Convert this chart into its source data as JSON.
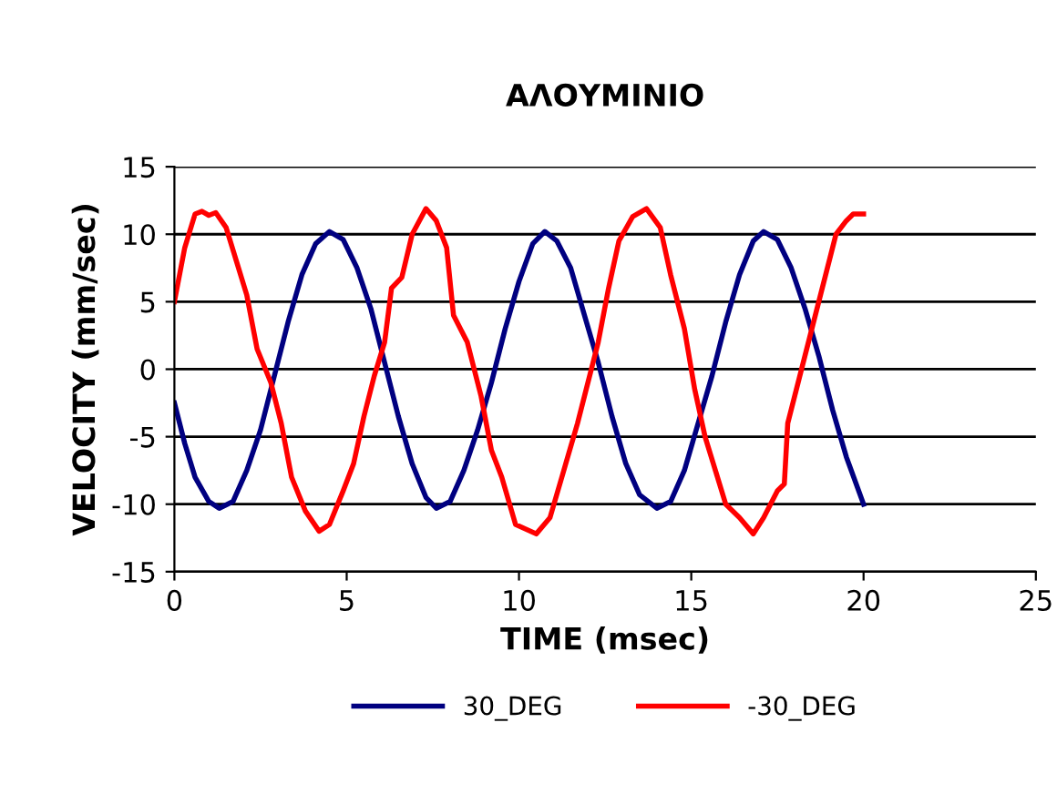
{
  "chart_data": {
    "type": "line",
    "title": "ΑΛΟΥΜΙΝΙΟ",
    "xlabel": "TIME (msec)",
    "ylabel": "VELOCITY (mm/sec)",
    "xlim": [
      0,
      25
    ],
    "xticks": [
      0,
      5,
      10,
      15,
      20,
      25
    ],
    "ylim": [
      -15,
      15
    ],
    "yticks": [
      -15,
      -10,
      -5,
      0,
      5,
      10,
      15
    ],
    "grid": "y",
    "legend": "bottom",
    "marker": "none",
    "line_style": "solid",
    "series": [
      {
        "name": "30_DEG",
        "color": "#000080",
        "x": [
          0,
          0.3,
          0.6,
          1.0,
          1.3,
          1.7,
          2.1,
          2.5,
          2.9,
          3.3,
          3.7,
          4.1,
          4.5,
          4.9,
          5.3,
          5.7,
          6.1,
          6.5,
          6.9,
          7.3,
          7.6,
          8.0,
          8.4,
          8.8,
          9.2,
          9.6,
          10.0,
          10.4,
          10.75,
          11.1,
          11.5,
          11.9,
          12.3,
          12.7,
          13.1,
          13.5,
          14.0,
          14.4,
          14.8,
          15.2,
          15.6,
          16.0,
          16.4,
          16.8,
          17.1,
          17.5,
          17.9,
          18.3,
          18.7,
          19.1,
          19.5,
          20
        ],
        "values": [
          -2.5,
          -5.5,
          -8,
          -9.8,
          -10.3,
          -9.8,
          -7.5,
          -4.5,
          -0.5,
          3.5,
          7,
          9.3,
          10.2,
          9.6,
          7.5,
          4.5,
          0.5,
          -3.5,
          -7,
          -9.5,
          -10.3,
          -9.8,
          -7.5,
          -4.5,
          -1,
          3,
          6.5,
          9.3,
          10.2,
          9.5,
          7.5,
          4,
          0.5,
          -3.5,
          -7,
          -9.3,
          -10.3,
          -9.8,
          -7.5,
          -4,
          -0.5,
          3.5,
          7,
          9.5,
          10.2,
          9.6,
          7.5,
          4.5,
          1,
          -3,
          -6.5,
          -10
        ]
      },
      {
        "name": "-30_DEG",
        "color": "#ff0000",
        "x": [
          0,
          0.3,
          0.6,
          0.8,
          1.0,
          1.2,
          1.5,
          1.8,
          2.1,
          2.4,
          2.8,
          3.1,
          3.4,
          3.8,
          4.2,
          4.5,
          4.9,
          5.2,
          5.5,
          5.8,
          6.1,
          6.3,
          6.6,
          6.9,
          7.3,
          7.6,
          7.9,
          8.1,
          8.5,
          8.9,
          9.2,
          9.5,
          9.9,
          10.5,
          10.9,
          11.3,
          11.7,
          12.0,
          12.3,
          12.6,
          12.9,
          13.3,
          13.7,
          14.1,
          14.4,
          14.8,
          15.1,
          15.4,
          15.7,
          16.0,
          16.4,
          16.8,
          17.1,
          17.5,
          17.7,
          17.8,
          18.1,
          18.5,
          18.9,
          19.2,
          19.5,
          19.7,
          20
        ],
        "values": [
          5,
          9,
          11.5,
          11.7,
          11.4,
          11.6,
          10.5,
          8,
          5.5,
          1.5,
          -1,
          -4,
          -8,
          -10.5,
          -12,
          -11.5,
          -9,
          -7,
          -3.5,
          -0.5,
          2,
          6,
          6.8,
          10,
          11.9,
          11,
          9,
          4,
          2,
          -2,
          -6,
          -8,
          -11.5,
          -12.2,
          -11,
          -7.5,
          -4,
          -1,
          2,
          6,
          9.5,
          11.3,
          11.9,
          10.5,
          7,
          3,
          -1.5,
          -5,
          -7.5,
          -10,
          -11,
          -12.2,
          -11,
          -9,
          -8.5,
          -4,
          -1,
          3,
          7,
          10,
          11,
          11.5,
          11.5
        ]
      }
    ]
  }
}
